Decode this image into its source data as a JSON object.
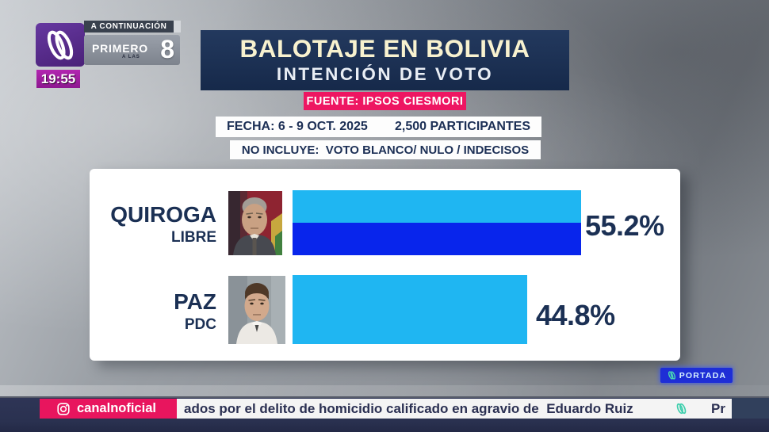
{
  "channel": {
    "time": "19:55",
    "next_label": "A CONTINUACIÓN",
    "show": {
      "name": "PRIMERO",
      "at": "A LAS",
      "number": "8"
    }
  },
  "banner": {
    "title": "BALOTAJE EN BOLIVIA",
    "subtitle": "INTENCIÓN DE VOTO"
  },
  "source_badge": "FUENTE: IPSOS CIESMORI",
  "meta": {
    "date": "FECHA: 6 - 9 OCT. 2025",
    "participants": "2,500 PARTICIPANTES",
    "exclusion": "NO INCLUYE:  VOTO BLANCO/ NULO / INDECISOS"
  },
  "chart_data": {
    "type": "bar",
    "orientation": "horizontal",
    "title": "BALOTAJE EN BOLIVIA — INTENCIÓN DE VOTO",
    "source": "IPSOS CIESMORI",
    "categories": [
      "QUIROGA (LIBRE)",
      "PAZ (PDC)"
    ],
    "values": [
      55.2,
      44.8
    ],
    "unit": "%",
    "xlim": [
      0,
      100
    ]
  },
  "candidates": [
    {
      "name": "QUIROGA",
      "party": "LIBRE",
      "value": 55.2,
      "label": "55.2%"
    },
    {
      "name": "PAZ",
      "party": "PDC",
      "value": 44.8,
      "label": "44.8%"
    }
  ],
  "portada": {
    "label": "PORTADA"
  },
  "ticker": {
    "handle": "canalnoficial",
    "headline": "ados por el delito de homicidio calificado en agravio de  Eduardo Ruiz",
    "next": "Pr"
  },
  "colors": {
    "banner_bg": "#1c3154",
    "accent_pink": "#ee1662",
    "navy_text": "#1b3054",
    "bar_cyan": "#1fb6f2",
    "bar_blue": "#0825ec",
    "ticker_bg": "#2a3150",
    "portada_blue": "#1e2ed6",
    "logo_purple": "#5b2d90",
    "time_magenta": "#a21b9f"
  }
}
